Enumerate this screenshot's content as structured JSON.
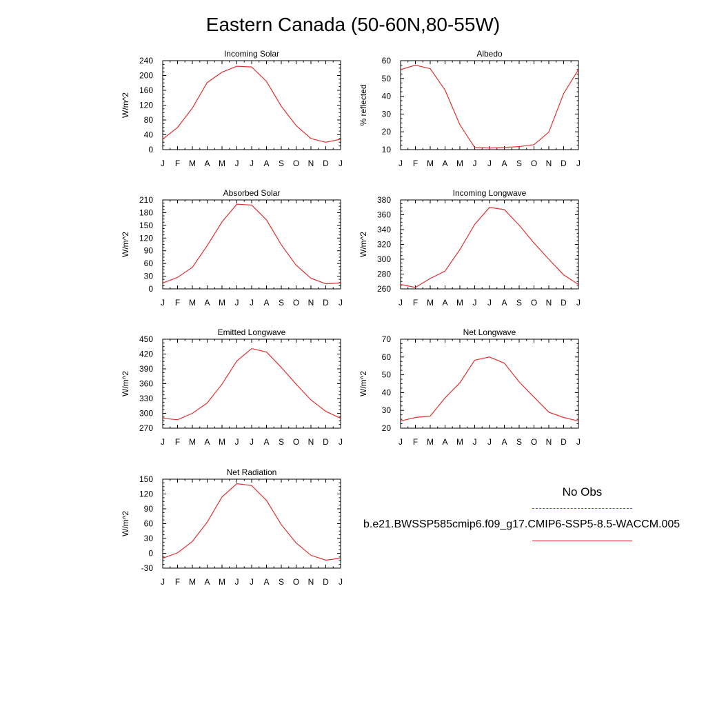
{
  "title": "Eastern Canada (50-60N,80-55W)",
  "legend": {
    "obs_label": "No Obs",
    "obs_color": "#5555dd",
    "model_label": "b.e21.BWSSP585cmip6.f09_g17.CMIP6-SSP5-8.5-WACCM.005",
    "model_color": "#e03030"
  },
  "chart_data": [
    {
      "type": "line",
      "title": "Incoming Solar",
      "ylabel": "W/m^2",
      "categories": [
        "J",
        "F",
        "M",
        "A",
        "M",
        "J",
        "J",
        "A",
        "S",
        "O",
        "N",
        "D",
        "J"
      ],
      "ylim": [
        0,
        240
      ],
      "yticks": [
        0,
        40,
        80,
        120,
        160,
        200,
        240
      ],
      "series": [
        {
          "values": [
            28,
            60,
            112,
            181,
            209,
            225,
            223,
            184,
            117,
            65,
            30,
            20,
            28
          ]
        }
      ]
    },
    {
      "type": "line",
      "title": "Albedo",
      "ylabel": "% reflected",
      "categories": [
        "J",
        "F",
        "M",
        "A",
        "M",
        "J",
        "J",
        "A",
        "S",
        "O",
        "N",
        "D",
        "J"
      ],
      "ylim": [
        10,
        60
      ],
      "yticks": [
        10,
        20,
        30,
        40,
        50,
        60
      ],
      "series": [
        {
          "values": [
            55,
            57.5,
            55.5,
            43.5,
            24,
            11.2,
            10.9,
            11.2,
            11.7,
            12.8,
            19.8,
            41.5,
            55
          ]
        }
      ]
    },
    {
      "type": "line",
      "title": "Absorbed Solar",
      "ylabel": "W/m^2",
      "categories": [
        "J",
        "F",
        "M",
        "A",
        "M",
        "J",
        "J",
        "A",
        "S",
        "O",
        "N",
        "D",
        "J"
      ],
      "ylim": [
        0,
        210
      ],
      "yticks": [
        0,
        30,
        60,
        90,
        120,
        150,
        180,
        210
      ],
      "series": [
        {
          "values": [
            14,
            27,
            51,
            102,
            158,
            200,
            198,
            163,
            104,
            56,
            25,
            12,
            14
          ]
        }
      ]
    },
    {
      "type": "line",
      "title": "Incoming Longwave",
      "ylabel": "W/m^2",
      "categories": [
        "J",
        "F",
        "M",
        "A",
        "M",
        "J",
        "J",
        "A",
        "S",
        "O",
        "N",
        "D",
        "J"
      ],
      "ylim": [
        260,
        380
      ],
      "yticks": [
        260,
        280,
        300,
        320,
        340,
        360,
        380
      ],
      "series": [
        {
          "values": [
            266,
            262,
            274,
            284,
            313,
            347,
            370,
            367,
            346,
            322,
            300,
            279,
            266
          ]
        }
      ]
    },
    {
      "type": "line",
      "title": "Emitted Longwave",
      "ylabel": "W/m^2",
      "categories": [
        "J",
        "F",
        "M",
        "A",
        "M",
        "J",
        "J",
        "A",
        "S",
        "O",
        "N",
        "D",
        "J"
      ],
      "ylim": [
        270,
        450
      ],
      "yticks": [
        270,
        300,
        330,
        360,
        390,
        420,
        450
      ],
      "series": [
        {
          "values": [
            290,
            287,
            300,
            321,
            359,
            406,
            431,
            424,
            393,
            359,
            327,
            304,
            290
          ]
        }
      ]
    },
    {
      "type": "line",
      "title": "Net Longwave",
      "ylabel": "W/m^2",
      "categories": [
        "J",
        "F",
        "M",
        "A",
        "M",
        "J",
        "J",
        "A",
        "S",
        "O",
        "N",
        "D",
        "J"
      ],
      "ylim": [
        20,
        70
      ],
      "yticks": [
        20,
        30,
        40,
        50,
        60,
        70
      ],
      "series": [
        {
          "values": [
            24,
            26,
            26.8,
            37,
            45.5,
            58.2,
            60,
            56.5,
            46,
            37.5,
            29,
            26,
            24
          ]
        }
      ]
    },
    {
      "type": "line",
      "title": "Net Radiation",
      "ylabel": "W/m^2",
      "categories": [
        "J",
        "F",
        "M",
        "A",
        "M",
        "J",
        "J",
        "A",
        "S",
        "O",
        "N",
        "D",
        "J"
      ],
      "ylim": [
        -30,
        150
      ],
      "yticks": [
        -30,
        0,
        30,
        60,
        90,
        120,
        150
      ],
      "series": [
        {
          "values": [
            -10,
            1,
            24,
            63,
            114,
            141,
            137,
            107,
            58,
            21,
            -4,
            -14,
            -10
          ]
        }
      ]
    }
  ]
}
